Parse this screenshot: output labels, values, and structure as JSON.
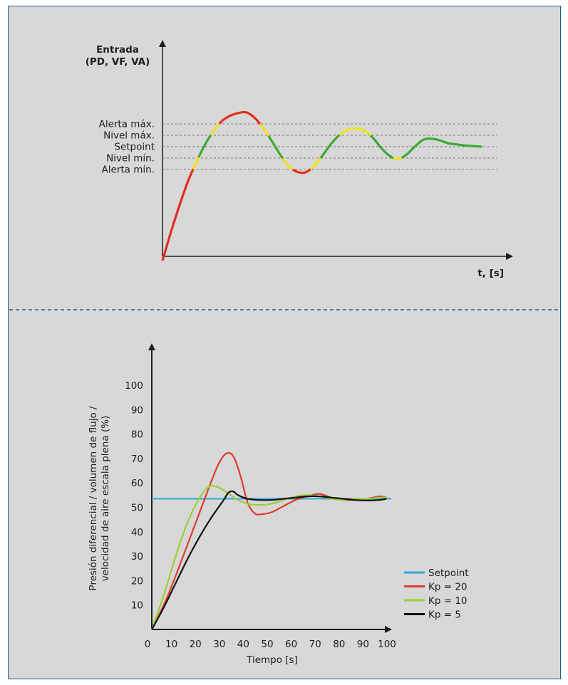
{
  "chart_data": [
    {
      "type": "line",
      "ylabel_lines": [
        "Entrada",
        "(PD, VF, VA)"
      ],
      "xlabel": "t, [s]",
      "levels": [
        {
          "label": "Alerta máx.",
          "value": 4
        },
        {
          "label": "Nivel máx.",
          "value": 3
        },
        {
          "label": "Setpoint",
          "value": 2
        },
        {
          "label": "Nivel mín.",
          "value": 1
        },
        {
          "label": "Alerta mín.",
          "value": 0
        }
      ],
      "ylim": [
        -8,
        7
      ],
      "xlim": [
        0,
        10
      ],
      "zone_colors": {
        "inside": "#3aaa35",
        "warning": "#f2e317",
        "alarm": "#e22e1f"
      },
      "signal": {
        "x": [
          0,
          0.25,
          0.5,
          0.75,
          1.0,
          1.25,
          1.5,
          1.75,
          2.0,
          2.25,
          2.5,
          2.75,
          3.0,
          3.25,
          3.5,
          3.75,
          4.0,
          4.25,
          4.5,
          4.75,
          5.0,
          5.25,
          5.5,
          5.75,
          6.0,
          6.25,
          6.5,
          6.75,
          7.0,
          7.25,
          7.5,
          7.75,
          8.0,
          8.25,
          8.5,
          8.75,
          9.0,
          9.25,
          9.5
        ],
        "y": [
          -8,
          -5.5,
          -3.2,
          -1.1,
          0.6,
          2.1,
          3.3,
          4.2,
          4.7,
          4.95,
          5.0,
          4.5,
          3.6,
          2.5,
          1.3,
          0.3,
          -0.2,
          -0.25,
          0.3,
          1.2,
          2.2,
          3.0,
          3.5,
          3.6,
          3.4,
          2.8,
          1.9,
          1.2,
          0.9,
          1.3,
          2.0,
          2.6,
          2.7,
          2.55,
          2.3,
          2.2,
          2.1,
          2.05,
          2.0
        ]
      }
    },
    {
      "type": "line",
      "ylabel_lines": [
        "Presión diferencial / volumen de flujo /",
        "velocidad de aire escala plena (%)"
      ],
      "xlabel": "Tiempo [s]",
      "x_ticks": [
        "0",
        "10",
        "20",
        "30",
        "40",
        "50",
        "60",
        "70",
        "80",
        "90",
        "100"
      ],
      "y_ticks": [
        "10",
        "20",
        "30",
        "40",
        "50",
        "60",
        "70",
        "80",
        "90",
        "100"
      ],
      "xlim": [
        0,
        100
      ],
      "ylim": [
        0,
        100
      ],
      "series": [
        {
          "name": "Setpoint",
          "color": "#2ea9df",
          "x": [
            0,
            100
          ],
          "y": [
            53.5,
            53.5
          ]
        },
        {
          "name": "Kp = 20",
          "color": "#e03a2c",
          "x": [
            0,
            5,
            10,
            15,
            20,
            25,
            28,
            31,
            34,
            37,
            40,
            43,
            46,
            50,
            55,
            60,
            65,
            70,
            75,
            80,
            85,
            90,
            95,
            98
          ],
          "y": [
            0,
            10,
            22,
            35,
            48,
            61,
            68,
            72,
            71,
            63,
            52,
            47.5,
            47.2,
            48,
            50.5,
            53,
            54.5,
            55.5,
            54,
            53,
            53,
            53.5,
            54.5,
            54
          ]
        },
        {
          "name": "Kp = 10",
          "color": "#9ad036",
          "x": [
            0,
            5,
            10,
            15,
            20,
            24,
            27,
            30,
            33,
            36,
            40,
            45,
            50,
            55,
            60,
            65,
            70,
            75,
            80,
            85,
            90,
            95,
            98
          ],
          "y": [
            0,
            14,
            30,
            44,
            54,
            58.5,
            58.5,
            57,
            55,
            53,
            51.5,
            51,
            51.5,
            53,
            54.5,
            55,
            54.5,
            53.5,
            53,
            53.5,
            53.5,
            54,
            54
          ]
        },
        {
          "name": "Kp = 5",
          "color": "#111111",
          "x": [
            0,
            5,
            10,
            15,
            20,
            25,
            30,
            32,
            34,
            36,
            40,
            45,
            50,
            55,
            60,
            65,
            70,
            75,
            80,
            85,
            90,
            95,
            98
          ],
          "y": [
            0,
            9,
            19,
            29,
            38,
            46,
            53,
            56,
            56.5,
            55,
            53.5,
            53,
            53,
            53.5,
            54,
            54.5,
            54.5,
            54,
            53.5,
            53,
            52.8,
            53,
            53.5
          ]
        }
      ]
    }
  ]
}
